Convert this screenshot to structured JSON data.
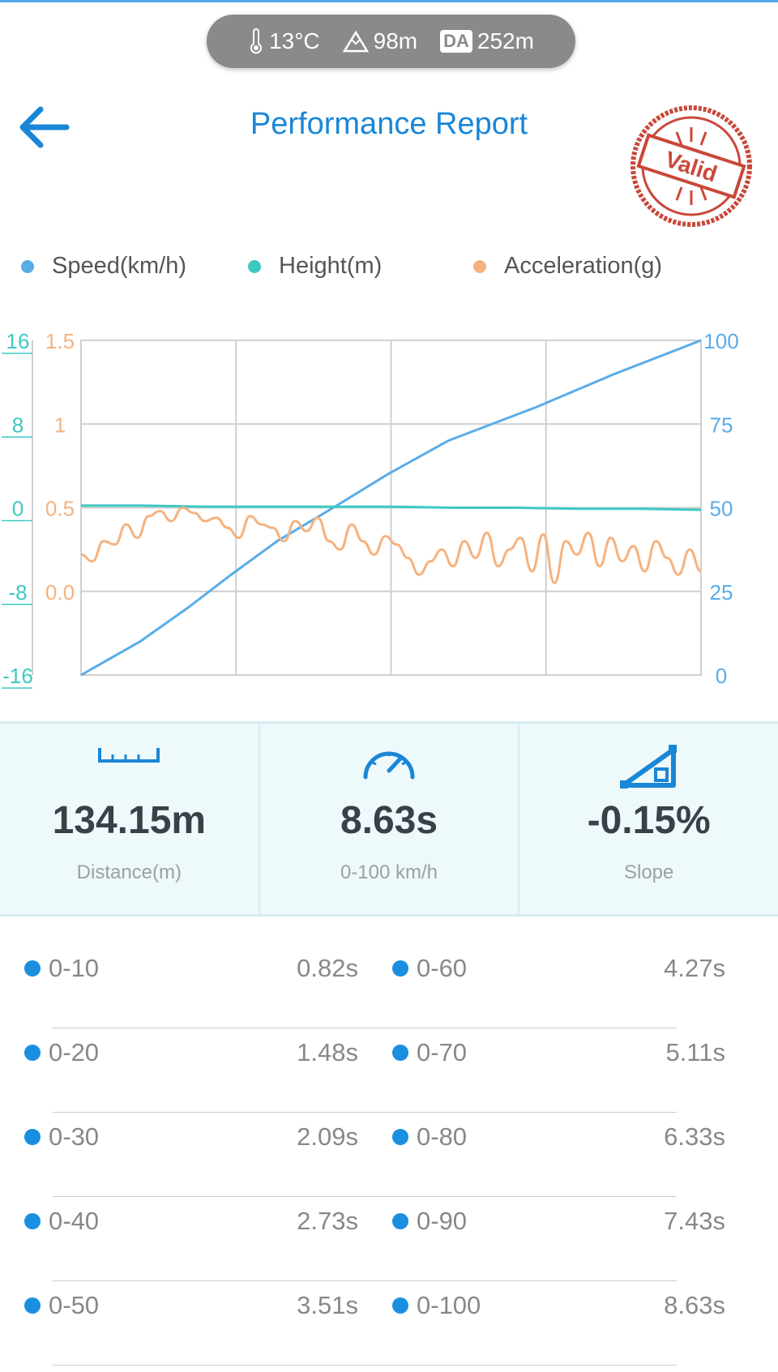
{
  "status_bar": {
    "temperature": "13°C",
    "altitude": "98m",
    "density_altitude_badge": "DA",
    "density_altitude": "252m"
  },
  "header": {
    "title": "Performance Report",
    "stamp_text": "Valid"
  },
  "legend": [
    {
      "label": "Speed(km/h)",
      "color": "#5aace8"
    },
    {
      "label": "Height(m)",
      "color": "#3ec8c2"
    },
    {
      "label": "Acceleration(g)",
      "color": "#f5b27f"
    }
  ],
  "chart_data": {
    "type": "line",
    "series": [
      {
        "name": "Speed(km/h)",
        "axis": "right",
        "x": [
          0,
          0.82,
          1.48,
          2.09,
          2.73,
          3.51,
          4.27,
          5.11,
          6.33,
          7.43,
          8.63
        ],
        "values": [
          0,
          10,
          20,
          30,
          40,
          50,
          60,
          70,
          80,
          90,
          100
        ]
      },
      {
        "name": "Height(m)",
        "axis": "left-outer",
        "values": [
          0.2,
          0.2,
          0.1,
          0.1,
          0.1,
          0.1,
          0.0,
          0.0,
          -0.1,
          -0.1,
          -0.2
        ]
      },
      {
        "name": "Acceleration(g)",
        "axis": "left-inner",
        "values": [
          0.22,
          0.18,
          0.3,
          0.28,
          0.4,
          0.32,
          0.45,
          0.48,
          0.42,
          0.5,
          0.47,
          0.42,
          0.44,
          0.38,
          0.32,
          0.45,
          0.4,
          0.38,
          0.3,
          0.42,
          0.36,
          0.44,
          0.3,
          0.25,
          0.4,
          0.3,
          0.22,
          0.33,
          0.28,
          0.2,
          0.1,
          0.18,
          0.25,
          0.15,
          0.3,
          0.2,
          0.35,
          0.15,
          0.25,
          0.32,
          0.12,
          0.34,
          0.05,
          0.3,
          0.22,
          0.35,
          0.15,
          0.32,
          0.18,
          0.27,
          0.12,
          0.3,
          0.2,
          0.1,
          0.25,
          0.12
        ]
      }
    ],
    "axes": {
      "left_outer": {
        "ticks": [
          "16",
          "8",
          "0",
          "-8",
          "-16"
        ],
        "range": [
          -16,
          16
        ],
        "color": "#3ec8c2"
      },
      "left_inner": {
        "ticks": [
          "1.5",
          "1",
          "0.5",
          "0.0"
        ],
        "range": [
          -0.5,
          1.5
        ],
        "color": "#f5b27f"
      },
      "right": {
        "ticks": [
          "100",
          "75",
          "50",
          "25",
          "0"
        ],
        "range": [
          0,
          100
        ],
        "color": "#5aace8"
      }
    },
    "grid": true
  },
  "stats": [
    {
      "value": "134.15m",
      "label": "Distance(m)",
      "icon": "ruler-icon"
    },
    {
      "value": "8.63s",
      "label": "0-100 km/h",
      "icon": "speedometer-icon"
    },
    {
      "value": "-0.15%",
      "label": "Slope",
      "icon": "slope-icon"
    }
  ],
  "splits": [
    {
      "left_label": "0-10",
      "left_time": "0.82s",
      "right_label": "0-60",
      "right_time": "4.27s"
    },
    {
      "left_label": "0-20",
      "left_time": "1.48s",
      "right_label": "0-70",
      "right_time": "5.11s"
    },
    {
      "left_label": "0-30",
      "left_time": "2.09s",
      "right_label": "0-80",
      "right_time": "6.33s"
    },
    {
      "left_label": "0-40",
      "left_time": "2.73s",
      "right_label": "0-90",
      "right_time": "7.43s"
    },
    {
      "left_label": "0-50",
      "left_time": "3.51s",
      "right_label": "0-100",
      "right_time": "8.63s"
    }
  ]
}
